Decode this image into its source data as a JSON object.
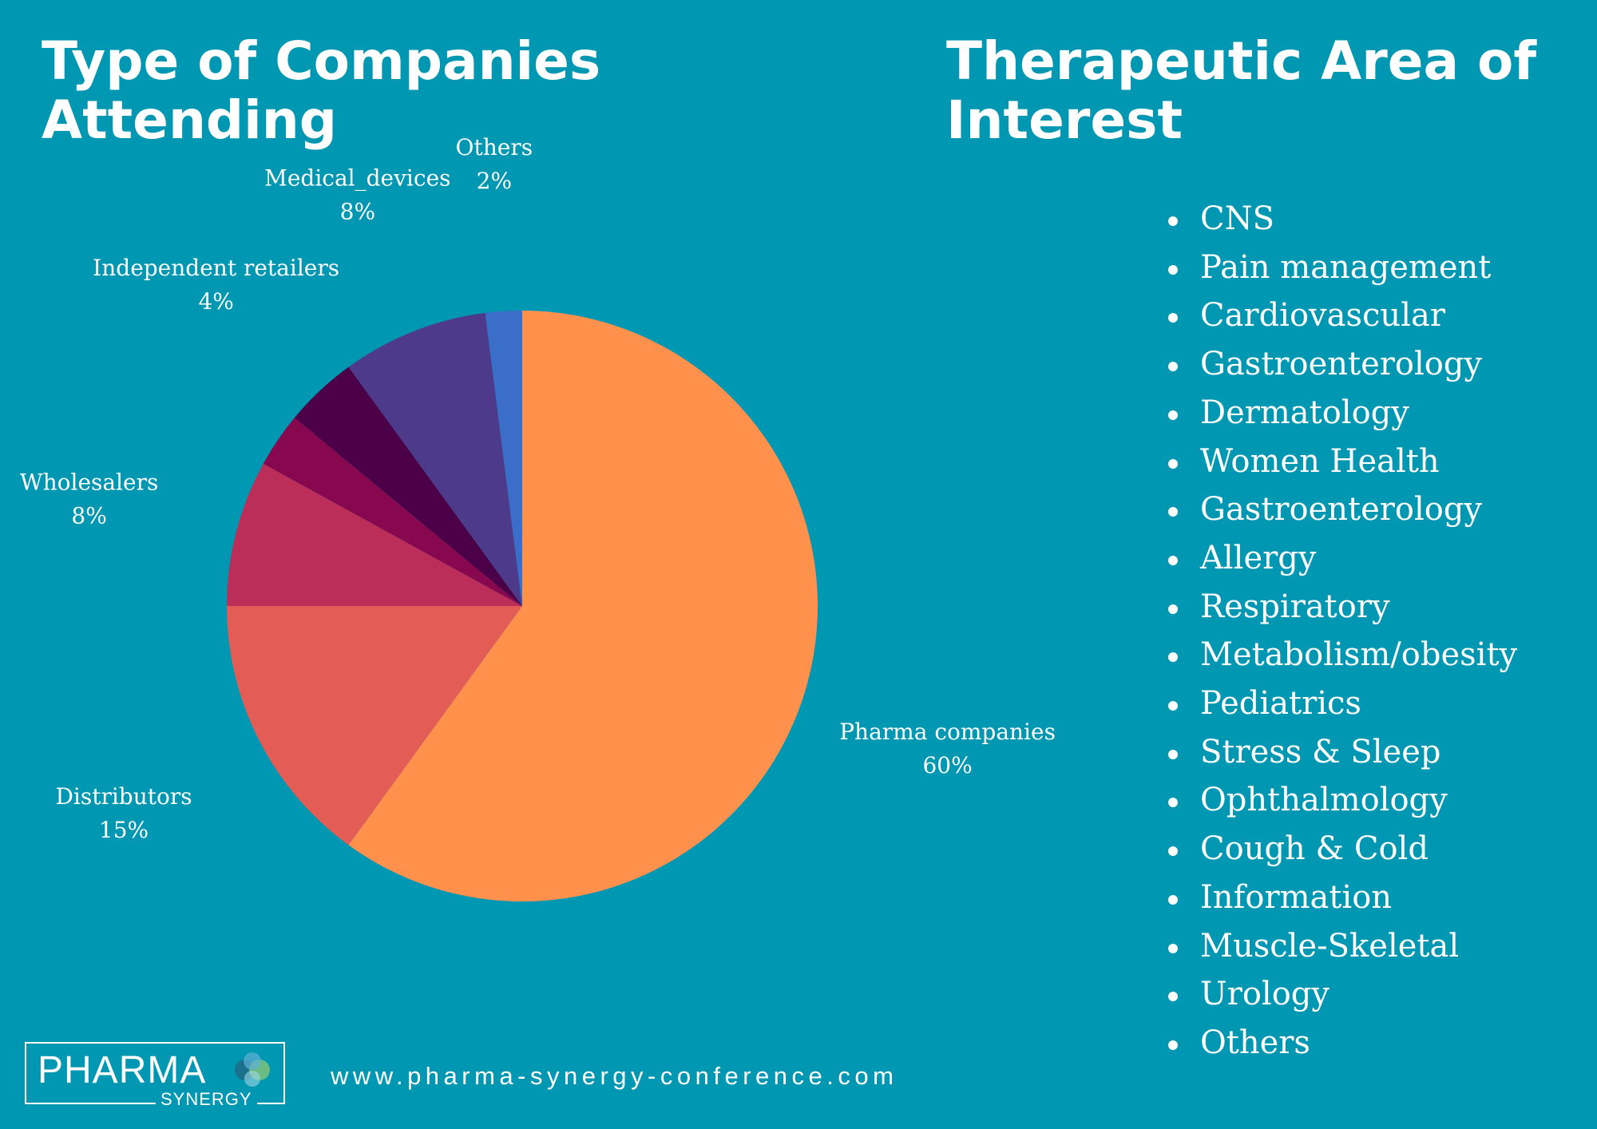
{
  "left_title": "Type of Companies Attending",
  "right_title": "Therapeutic Area of Interest",
  "chart_data": {
    "type": "pie",
    "title": "Type of Companies Attending",
    "slices": [
      {
        "label": "Pharma companies",
        "value": 60,
        "display": "60%",
        "color": "#ff914d"
      },
      {
        "label": "Distributors",
        "value": 15,
        "display": "15%",
        "color": "#e35d56"
      },
      {
        "label": "Wholesalers",
        "value": 8,
        "display": "8%",
        "color": "#bc2e5a"
      },
      {
        "label": "",
        "value": 3,
        "display": "",
        "color": "#88084f"
      },
      {
        "label": "Independent retailers",
        "value": 4,
        "display": "4%",
        "color": "#4c0048"
      },
      {
        "label": "Medical_devices",
        "value": 8,
        "display": "8%",
        "color": "#4e3a8a"
      },
      {
        "label": "Others",
        "value": 2,
        "display": "2%",
        "color": "#3a6ec8"
      }
    ]
  },
  "therapeutic_areas": [
    "CNS",
    "Pain management",
    "Cardiovascular",
    "Gastroenterology",
    "Dermatology",
    "Women Health",
    "Gastroenterology",
    "Allergy",
    "Respiratory",
    "Metabolism/obesity",
    "Pediatrics",
    "Stress & Sleep",
    "Ophthalmology",
    "Cough & Cold",
    "Information",
    "Muscle-Skeletal",
    "Urology",
    "Others"
  ],
  "logo": {
    "main": "PHARMA",
    "sub": "SYNERGY"
  },
  "website": "www.pharma-synergy-conference.com",
  "colors": {
    "background": "#0097b2",
    "text": "#ffffff"
  }
}
